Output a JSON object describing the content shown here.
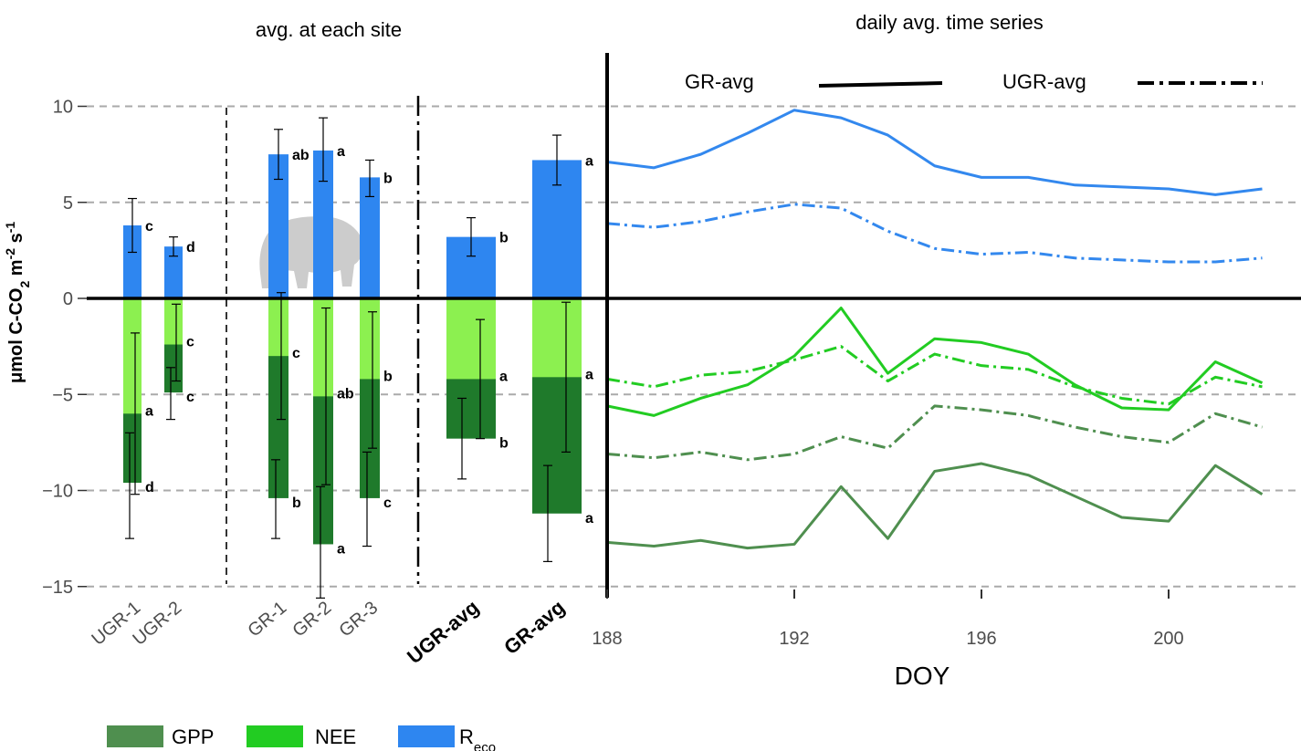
{
  "titles": {
    "left": "avg. at each site",
    "right": "daily avg.  time series"
  },
  "ylabel": {
    "main": "μmol C-CO",
    "sub": "2",
    "mid": " m",
    "sup1": "-2",
    "mid2": " s",
    "sup2": "-1"
  },
  "xlabel": "DOY",
  "line_legend": {
    "gr": "GR-avg",
    "ugr": "UGR-avg"
  },
  "legend": {
    "gpp": "GPP",
    "nee": "NEE",
    "reco_main": "R",
    "reco_sub": "eco"
  },
  "colors": {
    "gpp": "#4f8f4f",
    "gpp_bar": "#1f7a2b",
    "nee": "#22cc22",
    "nee_bar": "#8cf050",
    "reco": "#3388ee",
    "reco_bar": "#2e86f0"
  },
  "chart_data": {
    "type": "bar",
    "ylim": [
      -15,
      10
    ],
    "yticks": [
      10,
      5,
      0,
      -5,
      -10,
      -15
    ],
    "ytick_labels": [
      "10",
      "5",
      "0",
      "−5",
      "−10",
      "−15"
    ],
    "grid": true,
    "sites": [
      {
        "label": "UGR-1",
        "bold": false,
        "reco": 3.8,
        "reco_err": [
          2.4,
          5.2
        ],
        "reco_sig": "c",
        "nee": -6.0,
        "nee_err": [
          -10.2,
          -1.8
        ],
        "nee_sig": "a",
        "gpp": -9.6,
        "gpp_err": [
          -12.5,
          -7.0
        ],
        "gpp_sig": "d"
      },
      {
        "label": "UGR-2",
        "bold": false,
        "reco": 2.7,
        "reco_err": [
          2.2,
          3.2
        ],
        "reco_sig": "d",
        "nee": -2.4,
        "nee_err": [
          -4.3,
          -0.3
        ],
        "nee_sig": "c",
        "gpp": -4.9,
        "gpp_err": [
          -6.3,
          -3.6
        ],
        "gpp_sig": "c"
      },
      {
        "label": "GR-1",
        "bold": false,
        "reco": 7.5,
        "reco_err": [
          6.2,
          8.8
        ],
        "reco_sig": "ab",
        "nee": -3.0,
        "nee_err": [
          -6.3,
          0.3
        ],
        "nee_sig": "c",
        "gpp": -10.4,
        "gpp_err": [
          -12.5,
          -8.4
        ],
        "gpp_sig": "b"
      },
      {
        "label": "GR-2",
        "bold": false,
        "reco": 7.7,
        "reco_err": [
          6.1,
          9.4
        ],
        "reco_sig": "a",
        "nee": -5.1,
        "nee_err": [
          -9.7,
          -0.5
        ],
        "nee_sig": "ab",
        "gpp": -12.8,
        "gpp_err": [
          -15.6,
          -9.8
        ],
        "gpp_sig": "a"
      },
      {
        "label": "GR-3",
        "bold": false,
        "reco": 6.3,
        "reco_err": [
          5.3,
          7.2
        ],
        "reco_sig": "b",
        "nee": -4.2,
        "nee_err": [
          -7.8,
          -0.7
        ],
        "nee_sig": "b",
        "gpp": -10.4,
        "gpp_err": [
          -12.9,
          -8.0
        ],
        "gpp_sig": "c"
      },
      {
        "label": "UGR-avg",
        "bold": true,
        "reco": 3.2,
        "reco_err": [
          2.2,
          4.2
        ],
        "reco_sig": "b",
        "nee": -4.2,
        "nee_err": [
          -7.3,
          -1.1
        ],
        "nee_sig": "a",
        "gpp": -7.3,
        "gpp_err": [
          -9.4,
          -5.2
        ],
        "gpp_sig": "b"
      },
      {
        "label": "GR-avg",
        "bold": true,
        "reco": 7.2,
        "reco_err": [
          5.9,
          8.5
        ],
        "reco_sig": "a",
        "nee": -4.1,
        "nee_err": [
          -8.0,
          -0.2
        ],
        "nee_sig": "a",
        "gpp": -11.2,
        "gpp_err": [
          -13.7,
          -8.7
        ],
        "gpp_sig": "a"
      }
    ],
    "timeseries": {
      "type": "line",
      "x": [
        188,
        189,
        190,
        191,
        192,
        193,
        194,
        195,
        196,
        197,
        198,
        199,
        200,
        201,
        202
      ],
      "xticks": [
        188,
        192,
        196,
        200
      ],
      "xlabel": "DOY",
      "series": [
        {
          "name": "GR-avg",
          "component": "reco",
          "values": [
            7.1,
            6.8,
            7.5,
            8.6,
            9.8,
            9.4,
            8.5,
            6.9,
            6.3,
            6.3,
            5.9,
            5.8,
            5.7,
            5.4,
            5.7
          ]
        },
        {
          "name": "UGR-avg",
          "component": "reco",
          "values": [
            3.9,
            3.7,
            4.0,
            4.5,
            4.9,
            4.7,
            3.5,
            2.6,
            2.3,
            2.4,
            2.1,
            2.0,
            1.9,
            1.9,
            2.1
          ]
        },
        {
          "name": "GR-avg",
          "component": "nee",
          "values": [
            -5.6,
            -6.1,
            -5.2,
            -4.5,
            -3.0,
            -0.5,
            -3.9,
            -2.1,
            -2.3,
            -2.9,
            -4.5,
            -5.7,
            -5.8,
            -3.3,
            -4.4
          ]
        },
        {
          "name": "UGR-avg",
          "component": "nee",
          "values": [
            -4.2,
            -4.6,
            -4.0,
            -3.8,
            -3.2,
            -2.5,
            -4.3,
            -2.9,
            -3.5,
            -3.7,
            -4.6,
            -5.2,
            -5.5,
            -4.1,
            -4.6
          ]
        },
        {
          "name": "UGR-avg",
          "component": "gpp",
          "values": [
            -8.1,
            -8.3,
            -8.0,
            -8.4,
            -8.1,
            -7.2,
            -7.8,
            -5.6,
            -5.8,
            -6.1,
            -6.7,
            -7.2,
            -7.5,
            -6.0,
            -6.7
          ]
        },
        {
          "name": "GR-avg",
          "component": "gpp",
          "values": [
            -12.7,
            -12.9,
            -12.6,
            -13.0,
            -12.8,
            -9.8,
            -12.5,
            -9.0,
            -8.6,
            -9.2,
            -10.3,
            -11.4,
            -11.6,
            -8.7,
            -10.2
          ]
        }
      ]
    }
  }
}
